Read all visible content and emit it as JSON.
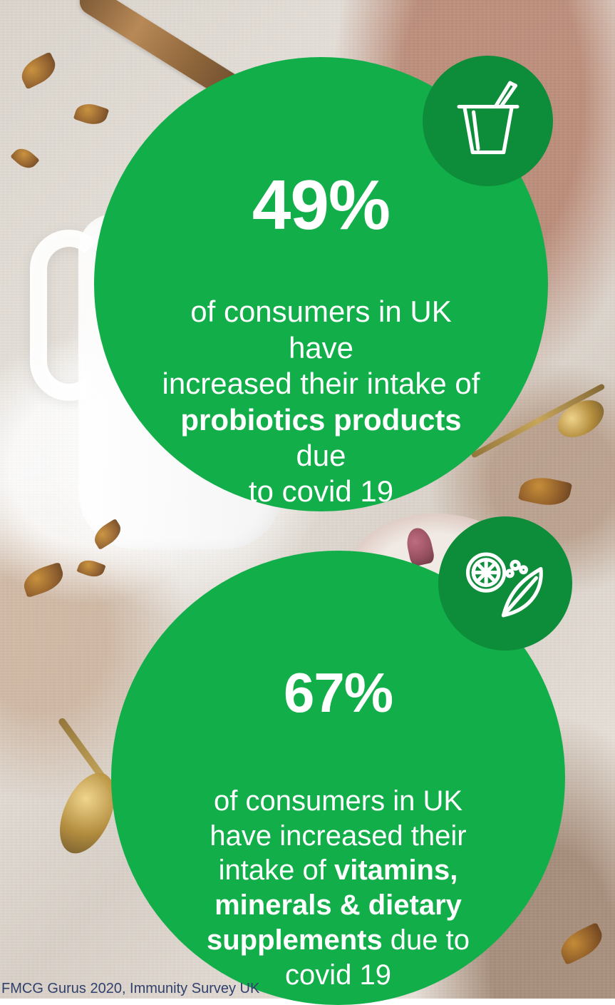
{
  "stats": [
    {
      "value": "49%",
      "text_prefix": "of consumers in UK have\nincreased their intake of\n",
      "emphasis": "probiotics products",
      "text_suffix": " due\nto covid 19",
      "icon": "yogurt-icon"
    },
    {
      "value": "67%",
      "text_prefix": "of consumers in UK\nhave increased their\nintake of ",
      "emphasis": "vitamins,\nminerals & dietary\nsupplements",
      "text_suffix": " due to\ncovid 19",
      "icon": "citrus-leaf-icon"
    }
  ],
  "source": "FMCG Gurus 2020, Immunity Survey UK",
  "colors": {
    "primary_green": "#12ae49",
    "dark_green": "#0d8c3a",
    "source_text": "#31406d"
  }
}
